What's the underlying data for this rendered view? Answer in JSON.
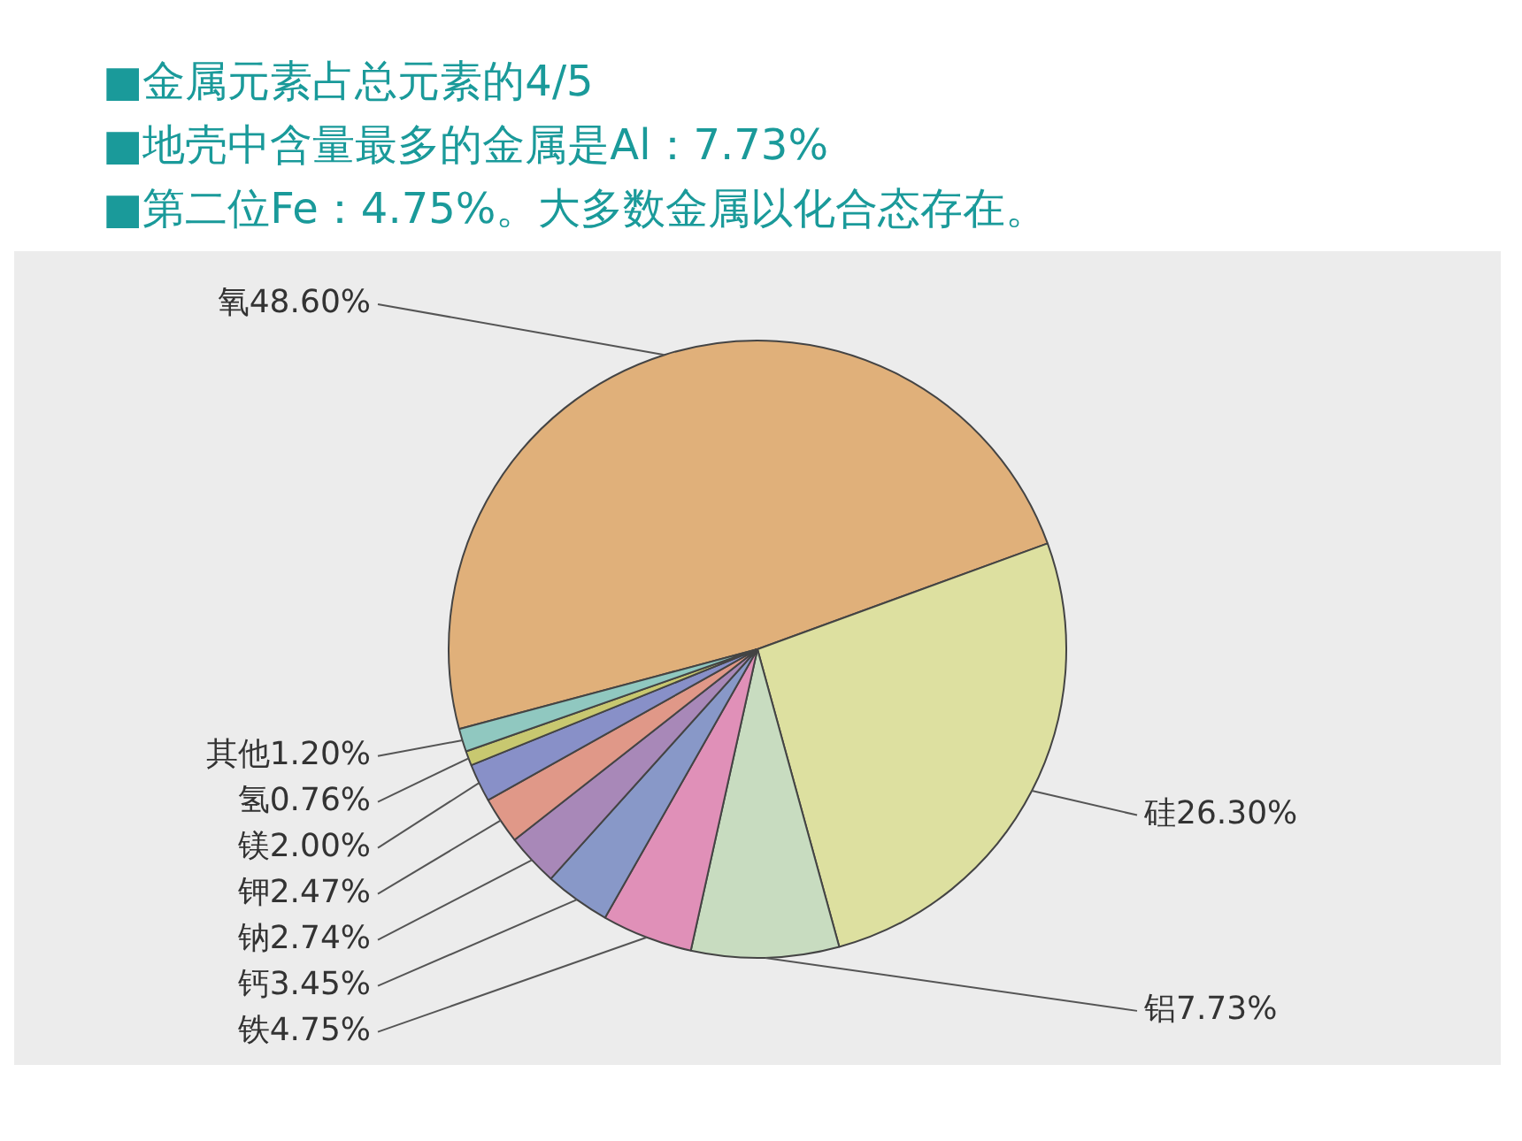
{
  "chart_data": {
    "type": "pie",
    "annotations": [
      "■金属元素占总元素的4/5",
      "■地壳中含量最多的金属是Al：7.73%",
      "■第二位Fe：4.75%。大多数金属以化合态存在。"
    ],
    "categories": [
      "氧",
      "硅",
      "铝",
      "铁",
      "钙",
      "钠",
      "钾",
      "镁",
      "氢",
      "其他"
    ],
    "values": [
      48.6,
      26.3,
      7.73,
      4.75,
      3.45,
      2.74,
      2.47,
      2.0,
      0.76,
      1.2
    ],
    "value_labels": [
      "48.60%",
      "26.30%",
      "7.73%",
      "4.75%",
      "3.45%",
      "2.74%",
      "2.47%",
      "2.00%",
      "0.76%",
      "1.20%"
    ],
    "colors": [
      "#e0b07a",
      "#dde0a0",
      "#c8dcc0",
      "#e090b8",
      "#8898c8",
      "#a888b8",
      "#e09888",
      "#8890c8",
      "#c8c870",
      "#90c8c0"
    ],
    "legend": false
  }
}
